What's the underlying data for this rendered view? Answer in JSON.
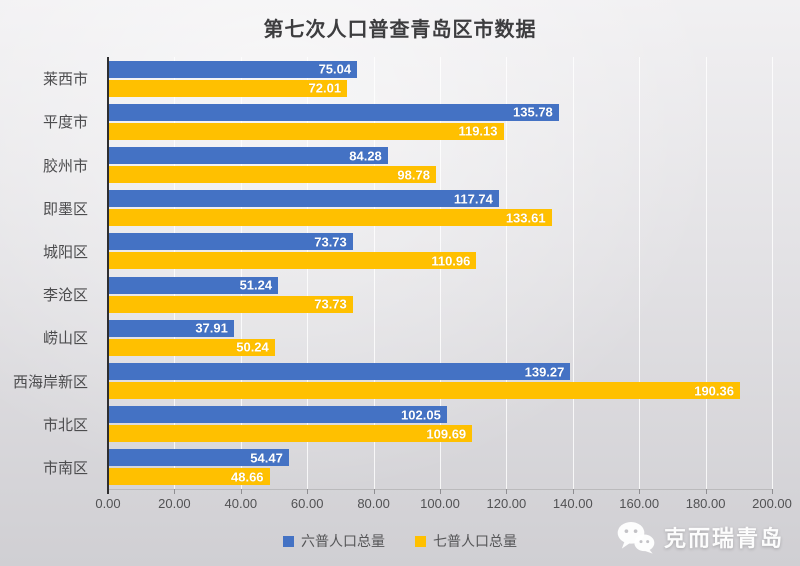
{
  "chart_data": {
    "type": "bar",
    "orientation": "horizontal",
    "title": "第七次人口普查青岛区市数据",
    "categories": [
      "莱西市",
      "平度市",
      "胶州市",
      "即墨区",
      "城阳区",
      "李沧区",
      "崂山区",
      "西海岸新区",
      "市北区",
      "市南区"
    ],
    "series": [
      {
        "name": "六普人口总量",
        "color": "#4472c4",
        "values": [
          75.04,
          135.78,
          84.28,
          117.74,
          73.73,
          51.24,
          37.91,
          139.27,
          102.05,
          54.47
        ]
      },
      {
        "name": "七普人口总量",
        "color": "#ffc000",
        "values": [
          72.01,
          119.13,
          98.78,
          133.61,
          110.96,
          73.73,
          50.24,
          190.36,
          109.69,
          48.66
        ]
      }
    ],
    "xlabel": "",
    "ylabel": "",
    "xlim": [
      0,
      200
    ],
    "x_ticks": [
      "0.00",
      "20.00",
      "40.00",
      "60.00",
      "80.00",
      "100.00",
      "120.00",
      "140.00",
      "160.00",
      "180.00",
      "200.00"
    ],
    "grid": true,
    "legend_position": "bottom",
    "value_labels": "inside-end, white, two decimals"
  },
  "watermark": {
    "icon": "wechat-icon",
    "text": "克而瑞青岛"
  }
}
